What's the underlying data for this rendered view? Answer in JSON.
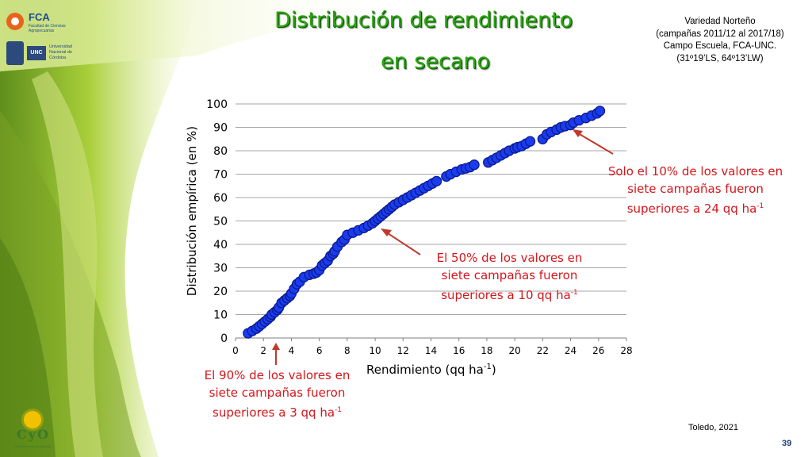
{
  "header": {
    "title_line1": "Distribución de rendimiento",
    "title_line2": "en secano",
    "credit_lines": [
      "Variedad Norteño",
      "(campañas 2011/12 al 2017/18)",
      "Campo Escuela, FCA-UNC.",
      "(31º19’LS, 64º13’LW)"
    ]
  },
  "logos": {
    "fca_name": "FCA",
    "fca_subtitle": "Facultad de Ciencias Agropecuarias",
    "unc_name": "UNC",
    "unc_subtitle": "Universidad Nacional de Córdoba",
    "cyo_name": "CyO",
    "cyo_tagline": "Conocimiento comunicado"
  },
  "callouts": {
    "top_line1": "Solo el 10% de los valores en",
    "top_line2": "siete campañas fueron",
    "top_line3": "superiores a 24 qq ha",
    "top_sup": "-1",
    "mid_line1": "El 50% de los valores en",
    "mid_line2": "siete campañas fueron",
    "mid_line3": "superiores a 10 qq ha",
    "mid_sup": "-1",
    "low_line1": "El 90% de los valores en",
    "low_line2": "siete campañas fueron",
    "low_line3": "superiores a 3 qq ha",
    "low_sup": "-1"
  },
  "footer": {
    "source": "Toledo, 2021",
    "page_number": "39"
  },
  "colors": {
    "title_green": "#2aa80f",
    "callout_red": "#d4161b",
    "arrow_red": "#c0392b",
    "point_fill": "#1a3cf0",
    "point_stroke": "#0b1a8c",
    "gridline": "#a6a6a6"
  },
  "chart_data": {
    "type": "scatter",
    "xlabel": "Rendimiento (qq ha",
    "xlabel_sup": "-1",
    "xlabel_close": ")",
    "ylabel": "Distribución empírica (en %)",
    "xlim": [
      0,
      28
    ],
    "ylim": [
      0,
      100
    ],
    "x_ticks": [
      0,
      2,
      4,
      6,
      8,
      10,
      12,
      14,
      16,
      18,
      20,
      22,
      24,
      26,
      28
    ],
    "y_ticks": [
      0,
      10,
      20,
      30,
      40,
      50,
      60,
      70,
      80,
      90,
      100
    ],
    "grid": "horizontal",
    "legend": "none",
    "series": [
      {
        "x": [
          0.9,
          1.2,
          1.5,
          1.7,
          1.9,
          2.1,
          2.3,
          2.5,
          2.6,
          2.8,
          3.0,
          3.1,
          3.3,
          3.5,
          3.7,
          3.9,
          4.0,
          4.2,
          4.4,
          4.6,
          4.9,
          5.3,
          5.6,
          5.8,
          6.0,
          6.2,
          6.4,
          6.6,
          6.8,
          7.0,
          7.1,
          7.3,
          7.6,
          7.8,
          8.0,
          8.4,
          8.8,
          9.2,
          9.5,
          9.8,
          10.0,
          10.2,
          10.4,
          10.6,
          10.8,
          11.0,
          11.2,
          11.4,
          11.7,
          12.0,
          12.3,
          12.6,
          12.9,
          13.2,
          13.5,
          13.8,
          14.1,
          14.4,
          15.1,
          15.4,
          15.8,
          16.2,
          16.5,
          16.8,
          17.1,
          18.1,
          18.4,
          18.7,
          19.0,
          19.3,
          19.6,
          20.0,
          20.2,
          20.5,
          20.8,
          21.1,
          22.0,
          22.3,
          22.6,
          23.0,
          23.3,
          23.6,
          24.0,
          24.2,
          24.6,
          25.1,
          25.5,
          25.9,
          26.1
        ],
        "y": [
          2,
          3,
          4,
          5,
          6,
          7,
          8,
          9,
          10,
          11,
          12,
          13,
          15,
          16,
          17,
          18,
          19,
          21,
          23,
          24,
          26,
          27,
          27.5,
          28,
          29,
          31,
          32,
          33,
          35,
          36,
          37,
          39,
          41,
          42,
          44,
          45,
          46,
          47,
          48,
          49,
          50,
          51,
          52,
          53,
          54,
          55,
          56,
          57,
          58,
          59,
          60,
          61,
          62,
          63,
          64,
          65,
          66,
          67,
          69,
          70,
          71,
          72,
          72.5,
          73,
          74,
          75,
          76,
          77,
          78,
          79,
          80,
          81,
          81.5,
          82,
          83,
          84,
          85,
          87,
          88,
          89,
          90,
          90.5,
          91,
          92,
          93,
          94,
          95,
          96,
          97
        ]
      }
    ]
  }
}
